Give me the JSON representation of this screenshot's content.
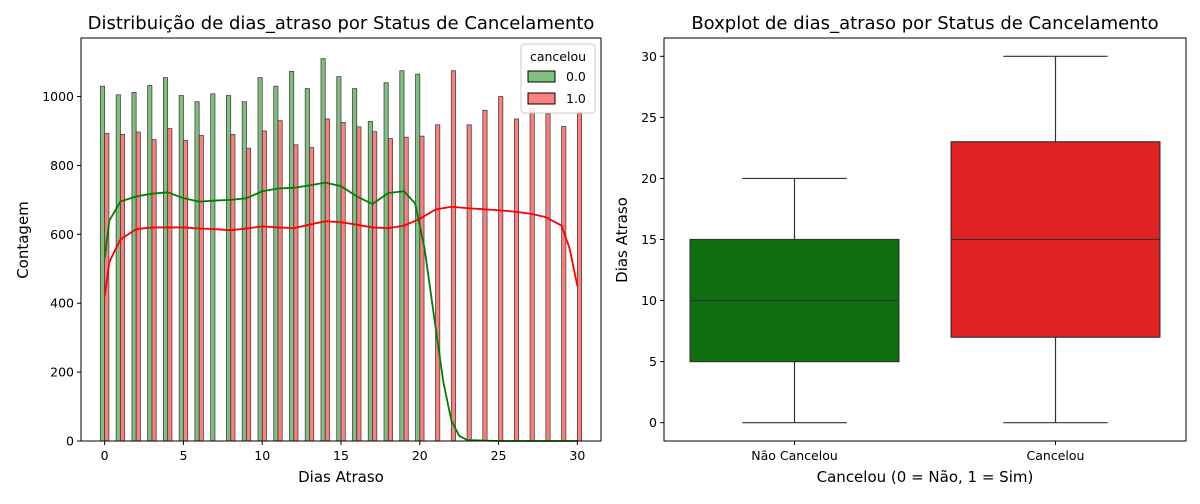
{
  "chart_data": [
    {
      "type": "histogram",
      "title": "Distribuição de dias_atraso por Status de Cancelamento",
      "xlabel": "Dias Atraso",
      "ylabel": "Contagem",
      "xlim": [
        -1.5,
        31.5
      ],
      "ylim": [
        0,
        1170
      ],
      "xticks": [
        0,
        5,
        10,
        15,
        20,
        25,
        30
      ],
      "yticks": [
        0,
        200,
        400,
        600,
        800,
        1000
      ],
      "grid": false,
      "legend": {
        "title": "cancelou",
        "position": "top-right"
      },
      "series": [
        {
          "name": "0.0",
          "color": "#008000",
          "x": [
            0,
            1,
            2,
            3,
            4,
            5,
            6,
            7,
            8,
            9,
            10,
            11,
            12,
            13,
            14,
            15,
            16,
            17,
            18,
            19,
            20
          ],
          "values": [
            1030,
            1005,
            1012,
            1032,
            1055,
            1003,
            985,
            1008,
            1003,
            985,
            1055,
            1030,
            1073,
            1023,
            1110,
            1058,
            1023,
            928,
            1040,
            1075,
            1065
          ],
          "kde": {
            "x": [
              0,
              0.3,
              1,
              2,
              3,
              4,
              5,
              6,
              7,
              8,
              9,
              10,
              11,
              12,
              13,
              14,
              15,
              16,
              17,
              18,
              19,
              19.7,
              20.3,
              21,
              21.5,
              22,
              22.5,
              23,
              25,
              30
            ],
            "y": [
              530,
              640,
              695,
              710,
              718,
              722,
              705,
              695,
              698,
              700,
              705,
              725,
              733,
              735,
              742,
              750,
              740,
              710,
              688,
              720,
              725,
              690,
              560,
              330,
              170,
              60,
              15,
              3,
              0,
              0
            ]
          }
        },
        {
          "name": "1.0",
          "color": "#ff0000",
          "x": [
            0,
            1,
            2,
            3,
            4,
            5,
            6,
            7,
            8,
            9,
            10,
            11,
            12,
            13,
            14,
            15,
            16,
            17,
            18,
            19,
            20,
            21,
            22,
            23,
            24,
            25,
            26,
            27,
            28,
            29,
            30
          ],
          "values": [
            893,
            890,
            897,
            875,
            907,
            873,
            887,
            0,
            890,
            850,
            900,
            930,
            860,
            852,
            935,
            925,
            912,
            898,
            878,
            882,
            885,
            918,
            1075,
            918,
            960,
            1000,
            935,
            965,
            950,
            913,
            955
          ],
          "kde": {
            "x": [
              0,
              0.3,
              1,
              2,
              3,
              4,
              5,
              6,
              7,
              8,
              9,
              10,
              11,
              12,
              13,
              14,
              15,
              16,
              17,
              18,
              19,
              20,
              21,
              22,
              23,
              24,
              25,
              26,
              27,
              28,
              29,
              29.5,
              30
            ],
            "y": [
              420,
              520,
              585,
              615,
              620,
              620,
              620,
              617,
              615,
              612,
              617,
              623,
              620,
              618,
              628,
              638,
              635,
              628,
              620,
              618,
              625,
              645,
              672,
              680,
              676,
              673,
              670,
              666,
              660,
              650,
              625,
              560,
              450
            ]
          }
        }
      ]
    },
    {
      "type": "boxplot",
      "title": "Boxplot de dias_atraso por Status de Cancelamento",
      "xlabel": "Cancelou (0 = Não, 1 = Sim)",
      "ylabel": "Dias Atraso",
      "ylim": [
        -1.5,
        31.5
      ],
      "yticks": [
        0,
        5,
        10,
        15,
        20,
        25,
        30
      ],
      "grid": false,
      "categories": [
        "Não Cancelou",
        "Cancelou"
      ],
      "boxes": [
        {
          "category": "Não Cancelou",
          "color": "#0f6f0f",
          "min": 0,
          "q1": 5,
          "median": 10,
          "q3": 15,
          "max": 20
        },
        {
          "category": "Cancelou",
          "color": "#e02222",
          "min": 0,
          "q1": 7,
          "median": 15,
          "q3": 23,
          "max": 30
        }
      ]
    }
  ]
}
